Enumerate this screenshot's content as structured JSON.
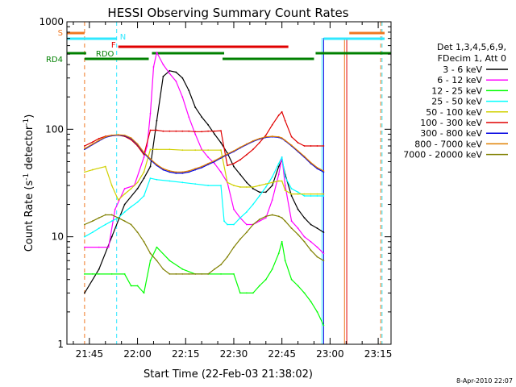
{
  "chart_data": {
    "type": "line",
    "title": "HESSI Observing Summary Count Rates",
    "xlabel": "Start Time (22-Feb-03 21:38:02)",
    "ylabel": "Count Rate (s",
    "ylabel_sup": "-1",
    "ylabel_mid": " detector",
    "ylabel_tail": ")",
    "x_unit": "minutes after 21:38",
    "xlim": [
      0,
      101
    ],
    "ylim": [
      1,
      1000
    ],
    "yscale": "log",
    "x_ticks": [
      {
        "x": 7,
        "label": "21:45"
      },
      {
        "x": 22,
        "label": "22:00"
      },
      {
        "x": 37,
        "label": "22:15"
      },
      {
        "x": 52,
        "label": "22:30"
      },
      {
        "x": 67,
        "label": "22:45"
      },
      {
        "x": 82,
        "label": "23:00"
      },
      {
        "x": 97,
        "label": "23:15"
      }
    ],
    "y_ticks": [
      {
        "y": 1,
        "label": "1"
      },
      {
        "y": 10,
        "label": "10"
      },
      {
        "y": 100,
        "label": "100"
      },
      {
        "y": 1000,
        "label": "1000"
      }
    ],
    "legend_header": [
      "Det 1,3,4,5,6,9,",
      "FDecim 1, Att 0"
    ],
    "legend_placement": "right",
    "timestamp": "8-Apr-2010 22:07",
    "flags": [
      {
        "label": "S",
        "color": "#f07820",
        "segments": [
          [
            0,
            5.5
          ],
          [
            88,
            99
          ]
        ]
      },
      {
        "label": "N",
        "color": "#30e8ff",
        "segments": [
          [
            0,
            15.5
          ],
          [
            80,
            99
          ]
        ]
      },
      {
        "label": "F",
        "color": "#e00000",
        "segments": [
          [
            16,
            69
          ]
        ]
      },
      {
        "label": "RDO",
        "color": "#008000",
        "segments": [
          [
            0,
            6
          ],
          [
            26.5,
            49
          ],
          [
            77.5,
            101
          ]
        ]
      },
      {
        "label": "RD4",
        "color": "#008000",
        "segments": [
          [
            5.5,
            25.5
          ],
          [
            48.5,
            77
          ]
        ]
      }
    ],
    "series": [
      {
        "name": "3 - 6 keV",
        "color": "#000000",
        "x": [
          5.5,
          10,
          14,
          18,
          22,
          24,
          26,
          28,
          30,
          32,
          34,
          36,
          38,
          40,
          42,
          44,
          46,
          48,
          50,
          52,
          54,
          56,
          58,
          60,
          62,
          64,
          66,
          67,
          68,
          70,
          72,
          74,
          76,
          78,
          80
        ],
        "y": [
          3,
          5,
          10,
          20,
          28,
          35,
          45,
          120,
          310,
          350,
          340,
          300,
          230,
          160,
          130,
          110,
          90,
          75,
          60,
          45,
          38,
          32,
          28,
          26,
          26,
          30,
          45,
          52,
          38,
          24,
          18,
          15,
          13,
          12,
          11
        ]
      },
      {
        "name": "6 - 12 keV",
        "color": "#ff00ff",
        "x": [
          5.5,
          10,
          13,
          15,
          18,
          21,
          24,
          25,
          26,
          27,
          28,
          30,
          32,
          34,
          36,
          38,
          40,
          42,
          44,
          46,
          48,
          50,
          52,
          54,
          56,
          58,
          60,
          62,
          64,
          66,
          67,
          68,
          70,
          72,
          74,
          76,
          78,
          80
        ],
        "y": [
          8,
          8,
          8,
          18,
          28,
          30,
          55,
          70,
          140,
          380,
          520,
          400,
          330,
          280,
          200,
          130,
          90,
          65,
          55,
          48,
          40,
          32,
          18,
          15,
          13,
          13,
          14,
          15,
          22,
          38,
          55,
          30,
          14,
          12,
          10,
          9,
          8,
          7
        ]
      },
      {
        "name": "12 - 25 keV",
        "color": "#00ff00",
        "x": [
          5.5,
          8,
          10,
          14,
          18,
          20,
          22,
          24,
          26,
          28,
          32,
          36,
          40,
          44,
          48,
          52,
          54,
          56,
          58,
          60,
          62,
          64,
          66,
          67,
          68,
          70,
          72,
          74,
          76,
          78,
          80
        ],
        "y": [
          4.5,
          4.5,
          4.5,
          4.5,
          4.5,
          3.5,
          3.5,
          3.0,
          6,
          8,
          6,
          5,
          4.5,
          4.5,
          4.5,
          4.5,
          3.0,
          3.0,
          3.0,
          3.5,
          4,
          5,
          7,
          9,
          6,
          4,
          3.5,
          3.0,
          2.5,
          2.0,
          1.5
        ]
      },
      {
        "name": "25 - 50 keV",
        "color": "#00ffff",
        "x": [
          5.5,
          8,
          10,
          12,
          14,
          16,
          18,
          20,
          22,
          24,
          26,
          28,
          32,
          36,
          40,
          44,
          48,
          49,
          50,
          52,
          54,
          56,
          58,
          60,
          62,
          64,
          66,
          67,
          68,
          70,
          72,
          74,
          76,
          78,
          80
        ],
        "y": [
          10,
          11,
          12,
          13,
          14,
          15,
          17,
          19,
          21,
          24,
          35,
          34,
          33,
          32,
          31,
          30,
          30,
          14,
          13,
          13,
          15,
          17,
          20,
          24,
          29,
          36,
          48,
          55,
          36,
          28,
          26,
          24,
          24,
          24,
          24
        ]
      },
      {
        "name": "50 - 100 keV",
        "color": "#d0d000",
        "x": [
          5.5,
          8,
          12,
          14,
          16,
          18,
          20,
          22,
          24,
          26,
          28,
          32,
          36,
          40,
          44,
          48,
          50,
          52,
          54,
          56,
          58,
          60,
          62,
          64,
          66,
          67,
          68,
          70,
          72,
          74,
          76,
          78,
          80
        ],
        "y": [
          40,
          42,
          45,
          30,
          22,
          25,
          28,
          32,
          40,
          65,
          65,
          65,
          64,
          64,
          64,
          64,
          32,
          30,
          29,
          29,
          29,
          30,
          31,
          32,
          33,
          33,
          27,
          25,
          25,
          25,
          25,
          25,
          25
        ]
      },
      {
        "name": "100 - 300 keV",
        "color": "#e00000",
        "x": [
          5.5,
          8,
          10,
          12,
          14,
          16,
          18,
          20,
          22,
          24,
          26,
          28,
          30,
          32,
          34,
          36,
          38,
          40,
          42,
          44,
          46,
          48,
          50,
          52,
          54,
          56,
          58,
          60,
          62,
          64,
          66,
          67,
          68,
          70,
          72,
          74,
          76,
          78,
          80
        ],
        "y": [
          70,
          76,
          82,
          86,
          88,
          88,
          86,
          80,
          70,
          58,
          98,
          98,
          96,
          96,
          96,
          96,
          96,
          95,
          95,
          96,
          96,
          97,
          46,
          48,
          52,
          58,
          65,
          75,
          88,
          110,
          135,
          145,
          120,
          85,
          75,
          70,
          70,
          70,
          70
        ]
      },
      {
        "name": "300 - 800 keV",
        "color": "#0000e0",
        "x": [
          5.5,
          8,
          10,
          12,
          14,
          16,
          18,
          20,
          22,
          24,
          26,
          28,
          30,
          32,
          34,
          36,
          38,
          40,
          42,
          44,
          46,
          48,
          50,
          52,
          54,
          56,
          58,
          60,
          62,
          64,
          66,
          67,
          68,
          70,
          72,
          74,
          76,
          78,
          80
        ],
        "y": [
          65,
          72,
          78,
          84,
          87,
          88,
          87,
          82,
          72,
          60,
          52,
          46,
          42,
          40,
          39,
          39,
          40,
          42,
          44,
          47,
          50,
          54,
          58,
          62,
          67,
          72,
          77,
          81,
          84,
          85,
          84,
          82,
          78,
          70,
          62,
          55,
          48,
          43,
          40
        ]
      },
      {
        "name": "800 - 7000 keV",
        "color": "#e08000",
        "x": [
          5.5,
          8,
          10,
          12,
          14,
          16,
          18,
          20,
          22,
          24,
          26,
          28,
          30,
          32,
          34,
          36,
          38,
          40,
          42,
          44,
          46,
          48,
          50,
          52,
          54,
          56,
          58,
          60,
          62,
          64,
          66,
          67,
          68,
          70,
          72,
          74,
          76,
          78,
          80
        ],
        "y": [
          66,
          73,
          79,
          85,
          88,
          89,
          88,
          83,
          73,
          61,
          53,
          47,
          43,
          41,
          40,
          40,
          41,
          43,
          45,
          48,
          51,
          55,
          59,
          63,
          68,
          73,
          78,
          82,
          85,
          86,
          85,
          83,
          79,
          71,
          63,
          56,
          49,
          44,
          41
        ]
      },
      {
        "name": "7000 - 20000 keV",
        "color": "#808000",
        "x": [
          5.5,
          8,
          10,
          12,
          14,
          16,
          18,
          20,
          22,
          24,
          26,
          28,
          30,
          32,
          34,
          36,
          38,
          40,
          42,
          44,
          46,
          48,
          50,
          52,
          54,
          56,
          58,
          60,
          62,
          64,
          66,
          67,
          68,
          70,
          72,
          74,
          76,
          78,
          80
        ],
        "y": [
          13,
          14,
          15,
          16,
          16,
          15,
          14,
          13,
          11,
          9,
          7,
          6,
          5,
          4.5,
          4.5,
          4.5,
          4.5,
          4.5,
          4.5,
          4.5,
          5,
          5.5,
          6.5,
          8,
          9.5,
          11,
          13,
          14.5,
          15.5,
          16,
          15.5,
          15,
          14,
          12,
          10.5,
          9,
          7.5,
          6.5,
          6
        ]
      }
    ]
  }
}
